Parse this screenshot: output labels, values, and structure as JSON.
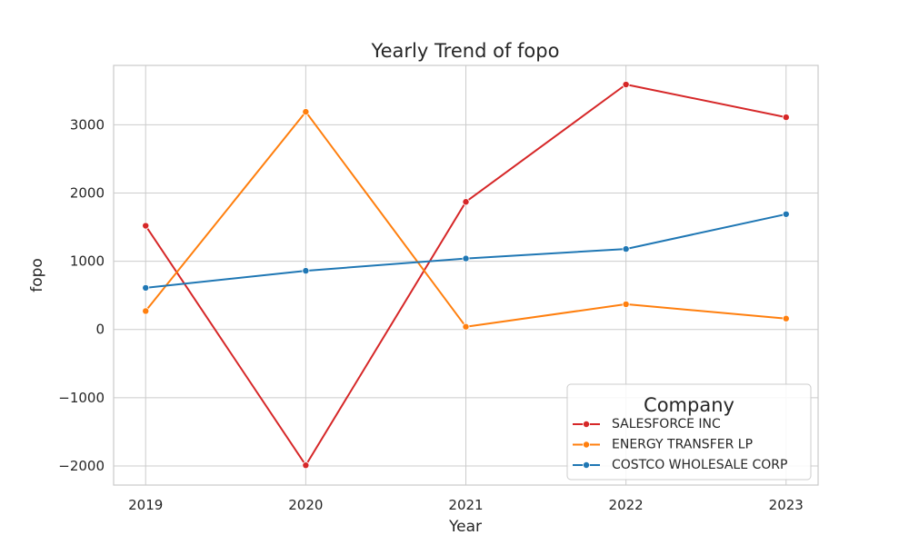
{
  "chart_data": {
    "type": "line",
    "title": "Yearly Trend of fopo",
    "xlabel": "Year",
    "ylabel": "fopo",
    "x": [
      2019,
      2020,
      2021,
      2022,
      2023
    ],
    "x_tick_labels": [
      "2019",
      "2020",
      "2021",
      "2022",
      "2023"
    ],
    "xlim": [
      2018.8,
      2023.2
    ],
    "y_ticks": [
      -2000,
      -1000,
      0,
      1000,
      2000,
      3000
    ],
    "y_tick_labels": [
      "−2000",
      "−1000",
      "0",
      "1000",
      "2000",
      "3000"
    ],
    "ylim": [
      -2280,
      3870
    ],
    "grid": true,
    "legend": {
      "title": "Company",
      "placement": "lower-right"
    },
    "series": [
      {
        "name": "SALESFORCE INC",
        "color": "#d62728",
        "values": [
          1520,
          -1990,
          1870,
          3590,
          3110
        ]
      },
      {
        "name": "ENERGY TRANSFER LP",
        "color": "#ff7f0e",
        "values": [
          270,
          3190,
          40,
          370,
          160
        ]
      },
      {
        "name": "COSTCO WHOLESALE CORP",
        "color": "#1f77b4",
        "values": [
          610,
          860,
          1040,
          1180,
          1690
        ]
      }
    ]
  }
}
